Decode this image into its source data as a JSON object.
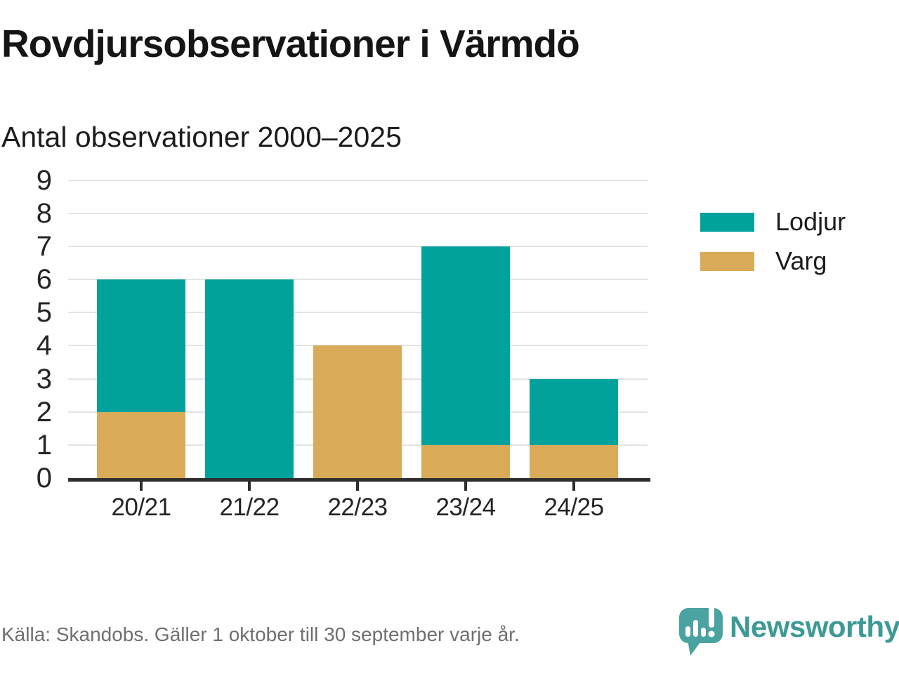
{
  "title": "Rovdjursobservationer i Värmdö",
  "subtitle": "Antal observationer 2000–2025",
  "chart_data": {
    "type": "bar",
    "stacked": true,
    "categories": [
      "20/21",
      "21/22",
      "22/23",
      "23/24",
      "24/25"
    ],
    "series": [
      {
        "name": "Lodjur",
        "color": "#00a29b",
        "values": [
          4,
          6,
          0,
          6,
          2
        ]
      },
      {
        "name": "Varg",
        "color": "#d9ab59",
        "values": [
          2,
          0,
          4,
          1,
          1
        ]
      }
    ],
    "stack_order_bottom_to_top": [
      "Varg",
      "Lodjur"
    ],
    "stacked_totals": [
      6,
      6,
      4,
      7,
      3
    ],
    "title": "Rovdjursobservationer i Värmdö",
    "subtitle": "Antal observationer 2000–2025",
    "xlabel": "",
    "ylabel": "",
    "ylim": [
      0,
      9
    ],
    "yticks": [
      0,
      1,
      2,
      3,
      4,
      5,
      6,
      7,
      8,
      9
    ],
    "grid": "horizontal",
    "legend_position": "right"
  },
  "legend": {
    "items": [
      {
        "label": "Lodjur",
        "color": "#00a29b"
      },
      {
        "label": "Varg",
        "color": "#d9ab59"
      }
    ]
  },
  "footer": {
    "source": "Källa: Skandobs. Gäller 1 oktober till 30 september varje år.",
    "brand": "Newsworthy"
  },
  "colors": {
    "grid": "#e3e3e3",
    "axis": "#2e2e2e",
    "brand_text": "#3d9a94",
    "logo_bubble": "#4aa3a0"
  }
}
